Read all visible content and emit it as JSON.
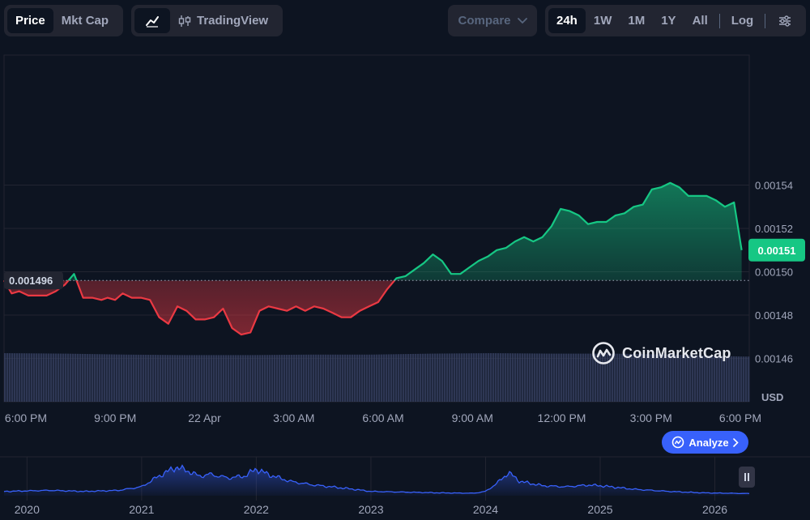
{
  "toolbar": {
    "metric_tabs": [
      {
        "label": "Price",
        "active": true
      },
      {
        "label": "Mkt Cap",
        "active": false
      }
    ],
    "chart_type": {
      "tradingview_label": "TradingView"
    },
    "compare_label": "Compare",
    "ranges": [
      {
        "label": "24h",
        "active": true
      },
      {
        "label": "1W",
        "active": false
      },
      {
        "label": "1M",
        "active": false
      },
      {
        "label": "1Y",
        "active": false
      },
      {
        "label": "All",
        "active": false
      }
    ],
    "log_label": "Log"
  },
  "watermark": "CoinMarketCap",
  "analyze_label": "Analyze",
  "colors": {
    "up": "#16c784",
    "down": "#ea3943",
    "accent": "#3861fb",
    "background": "#0d1421"
  },
  "chart_data": [
    {
      "type": "area",
      "currency_label": "USD",
      "x_ticks": [
        "6:00 PM",
        "9:00 PM",
        "22 Apr",
        "3:00 AM",
        "6:00 AM",
        "9:00 AM",
        "12:00 PM",
        "3:00 PM",
        "6:00 PM"
      ],
      "y_ticks": [
        0.00146,
        0.00148,
        0.0015,
        0.00152,
        0.00154
      ],
      "y_tick_labels": [
        "0.00146",
        "0.00148",
        "0.00150",
        "0.00152",
        "0.00154"
      ],
      "ylim": [
        0.00144,
        0.0016
      ],
      "baseline": 0.001496,
      "baseline_label": "0.001496",
      "current_price": 0.00151,
      "current_price_label": "0.00151",
      "x_range_hours": [
        0,
        24.5
      ],
      "price": {
        "x_hours": [
          0,
          0.25,
          0.5,
          0.8,
          1.1,
          1.4,
          1.7,
          2.0,
          2.3,
          2.6,
          2.9,
          3.2,
          3.4,
          3.65,
          3.9,
          4.2,
          4.5,
          4.8,
          5.1,
          5.4,
          5.7,
          6.0,
          6.3,
          6.6,
          6.9,
          7.2,
          7.5,
          7.8,
          8.1,
          8.4,
          8.7,
          9.0,
          9.3,
          9.6,
          9.9,
          10.2,
          10.5,
          10.8,
          11.1,
          11.4,
          11.7,
          12.0,
          12.3,
          12.6,
          12.9,
          13.2,
          13.5,
          13.8,
          14.1,
          14.4,
          14.7,
          15.0,
          15.3,
          15.6,
          15.9,
          16.2,
          16.5,
          16.8,
          17.1,
          17.4,
          17.7,
          18.0,
          18.3,
          18.6,
          18.9,
          19.2,
          19.5,
          19.8,
          20.1,
          20.4,
          20.7,
          21.0,
          21.3,
          21.6,
          21.9,
          22.2,
          22.5,
          22.8,
          23.1,
          23.4,
          23.7,
          24.0,
          24.25
        ],
        "y": [
          0.001496,
          0.00149,
          0.001491,
          0.001489,
          0.001489,
          0.001489,
          0.001491,
          0.001494,
          0.001499,
          0.001488,
          0.001488,
          0.001487,
          0.001488,
          0.001487,
          0.00149,
          0.001488,
          0.001488,
          0.001487,
          0.001479,
          0.001476,
          0.001484,
          0.001482,
          0.001478,
          0.001478,
          0.001479,
          0.001483,
          0.001474,
          0.001471,
          0.001472,
          0.001482,
          0.001484,
          0.001483,
          0.001482,
          0.001484,
          0.001482,
          0.001484,
          0.001483,
          0.001481,
          0.001479,
          0.001479,
          0.001482,
          0.001484,
          0.001486,
          0.001492,
          0.001497,
          0.001498,
          0.001501,
          0.001504,
          0.001508,
          0.001505,
          0.001499,
          0.001499,
          0.001502,
          0.001505,
          0.001507,
          0.00151,
          0.001511,
          0.001514,
          0.001516,
          0.001514,
          0.001516,
          0.001521,
          0.001529,
          0.001528,
          0.001526,
          0.001522,
          0.001523,
          0.001523,
          0.001526,
          0.001527,
          0.00153,
          0.001531,
          0.001538,
          0.001539,
          0.001541,
          0.001539,
          0.001535,
          0.001535,
          0.001535,
          0.001533,
          0.00153,
          0.001532,
          0.00151
        ]
      },
      "volume": {
        "x_hours": [
          0,
          2,
          4,
          6,
          8,
          10,
          12,
          14,
          16,
          18,
          20,
          22,
          24.25
        ],
        "values": [
          1.0,
          0.99,
          0.97,
          0.96,
          0.96,
          0.97,
          0.97,
          0.99,
          1.0,
          0.99,
          0.99,
          0.97,
          0.93
        ]
      }
    },
    {
      "type": "area",
      "name": "navigator",
      "x_ticks": [
        "2020",
        "2021",
        "2022",
        "2023",
        "2024",
        "2025",
        "2026"
      ],
      "x_years": [
        2019.8,
        2020.2,
        2020.5,
        2020.8,
        2021.0,
        2021.15,
        2021.3,
        2021.4,
        2021.5,
        2021.6,
        2021.75,
        2021.9,
        2022.0,
        2022.1,
        2022.3,
        2022.5,
        2022.8,
        2023.0,
        2023.3,
        2023.6,
        2023.9,
        2024.0,
        2024.1,
        2024.2,
        2024.3,
        2024.5,
        2024.7,
        2024.9,
        2025.0,
        2025.3,
        2025.6,
        2025.9,
        2026.3
      ],
      "values": [
        0.12,
        0.15,
        0.12,
        0.15,
        0.25,
        0.55,
        0.8,
        0.7,
        0.55,
        0.6,
        0.5,
        0.55,
        0.75,
        0.6,
        0.4,
        0.3,
        0.2,
        0.12,
        0.1,
        0.08,
        0.07,
        0.12,
        0.35,
        0.65,
        0.4,
        0.28,
        0.25,
        0.3,
        0.28,
        0.18,
        0.12,
        0.08,
        0.06
      ]
    }
  ]
}
